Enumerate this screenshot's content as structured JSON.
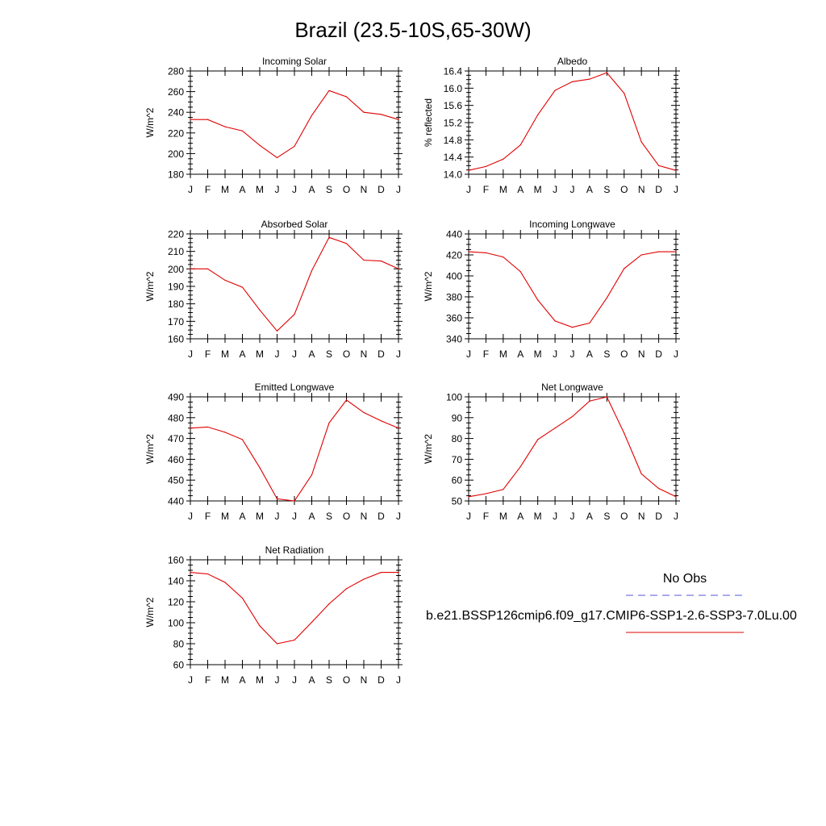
{
  "page_title": "Brazil (23.5-10S,65-30W)",
  "colors": {
    "model_line": "#e00000",
    "obs_line": "#5555dd",
    "axis": "#000000"
  },
  "legend": {
    "obs_label": "No Obs",
    "model_label": "b.e21.BSSP126cmip6.f09_g17.CMIP6-SSP1-2.6-SSP3-7.0Lu.00"
  },
  "chart_data": [
    {
      "type": "line",
      "title": "Incoming Solar",
      "ylabel": "W/m^2",
      "categories": [
        "J",
        "F",
        "M",
        "A",
        "M",
        "J",
        "J",
        "A",
        "S",
        "O",
        "N",
        "D",
        "J"
      ],
      "ylim": [
        180,
        280
      ],
      "yticks": [
        "180",
        "200",
        "220",
        "240",
        "260",
        "280"
      ],
      "values": [
        233,
        233,
        226,
        222,
        208,
        196,
        207,
        237,
        261,
        255,
        240,
        238,
        233
      ]
    },
    {
      "type": "line",
      "title": "Albedo",
      "ylabel": "% reflected",
      "categories": [
        "J",
        "F",
        "M",
        "A",
        "M",
        "J",
        "J",
        "A",
        "S",
        "O",
        "N",
        "D",
        "J"
      ],
      "ylim": [
        14.0,
        16.4
      ],
      "yticks": [
        "14.0",
        "14.4",
        "14.8",
        "15.2",
        "15.6",
        "16.0",
        "16.4"
      ],
      "values": [
        14.09,
        14.18,
        14.35,
        14.68,
        15.38,
        15.95,
        16.15,
        16.21,
        16.36,
        15.88,
        14.75,
        14.2,
        14.09
      ]
    },
    {
      "type": "line",
      "title": "Absorbed Solar",
      "ylabel": "W/m^2",
      "categories": [
        "J",
        "F",
        "M",
        "A",
        "M",
        "J",
        "J",
        "A",
        "S",
        "O",
        "N",
        "D",
        "J"
      ],
      "ylim": [
        160,
        220
      ],
      "yticks": [
        "160",
        "170",
        "180",
        "190",
        "200",
        "210",
        "220"
      ],
      "values": [
        200,
        200,
        193.5,
        189.5,
        176.5,
        164.5,
        174,
        199,
        218,
        214.5,
        205,
        204.5,
        200
      ]
    },
    {
      "type": "line",
      "title": "Incoming Longwave",
      "ylabel": "W/m^2",
      "categories": [
        "J",
        "F",
        "M",
        "A",
        "M",
        "J",
        "J",
        "A",
        "S",
        "O",
        "N",
        "D",
        "J"
      ],
      "ylim": [
        340,
        440
      ],
      "yticks": [
        "340",
        "360",
        "380",
        "400",
        "420",
        "440"
      ],
      "values": [
        423,
        422,
        418,
        404,
        377,
        357,
        351,
        355,
        379,
        407,
        420,
        423,
        423
      ]
    },
    {
      "type": "line",
      "title": "Emitted Longwave",
      "ylabel": "W/m^2",
      "categories": [
        "J",
        "F",
        "M",
        "A",
        "M",
        "J",
        "J",
        "A",
        "S",
        "O",
        "N",
        "D",
        "J"
      ],
      "ylim": [
        440,
        490
      ],
      "yticks": [
        "440",
        "450",
        "460",
        "470",
        "480",
        "490"
      ],
      "values": [
        475,
        475.5,
        473,
        469.5,
        456,
        441,
        440,
        452.5,
        477.5,
        488.5,
        482.5,
        478.5,
        475
      ]
    },
    {
      "type": "line",
      "title": "Net Longwave",
      "ylabel": "W/m^2",
      "categories": [
        "J",
        "F",
        "M",
        "A",
        "M",
        "J",
        "J",
        "A",
        "S",
        "O",
        "N",
        "D",
        "J"
      ],
      "ylim": [
        50,
        100
      ],
      "yticks": [
        "50",
        "60",
        "70",
        "80",
        "90",
        "100"
      ],
      "values": [
        52,
        53.5,
        55.5,
        66.5,
        79.5,
        85,
        90.5,
        98,
        100,
        82.5,
        63,
        56,
        52
      ]
    },
    {
      "type": "line",
      "title": "Net Radiation",
      "ylabel": "W/m^2",
      "categories": [
        "J",
        "F",
        "M",
        "A",
        "M",
        "J",
        "J",
        "A",
        "S",
        "O",
        "N",
        "D",
        "J"
      ],
      "ylim": [
        60,
        160
      ],
      "yticks": [
        "60",
        "80",
        "100",
        "120",
        "140",
        "160"
      ],
      "values": [
        148,
        146.5,
        138.5,
        123.5,
        97,
        80,
        83.5,
        100.5,
        118,
        132.5,
        141.5,
        148,
        148
      ]
    }
  ]
}
